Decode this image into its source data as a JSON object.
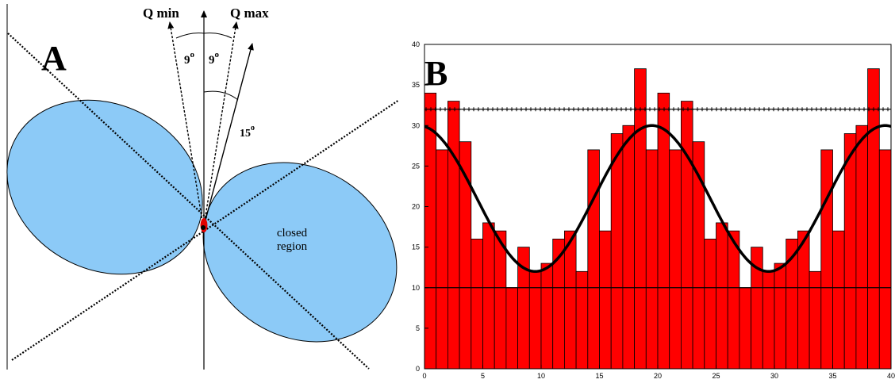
{
  "panel_a": {
    "label": "A",
    "q_min": "Q min",
    "q_max": "Q max",
    "angle_left": "9",
    "angle_right": "9",
    "angle_sup": "o",
    "angle_15": "15",
    "closed_line1": "closed",
    "closed_line2": "region",
    "colors": {
      "lobe": "#8ccaf7",
      "core": "#e00000"
    }
  },
  "chart_data": {
    "type": "bar",
    "label": "B",
    "xlim": [
      0,
      40
    ],
    "ylim": [
      0,
      40
    ],
    "xticks": [
      0,
      5,
      10,
      15,
      20,
      25,
      30,
      35,
      40
    ],
    "yticks": [
      0,
      5,
      10,
      15,
      20,
      25,
      30,
      35,
      40
    ],
    "values": [
      34,
      27,
      33,
      28,
      16,
      18,
      17,
      10,
      15,
      12,
      13,
      16,
      17,
      12,
      27,
      17,
      29,
      30,
      37,
      27,
      34,
      27,
      33,
      28,
      16,
      18,
      17,
      10,
      15,
      12,
      13,
      16,
      17,
      12,
      27,
      17,
      29,
      30,
      37,
      27
    ],
    "bar_width": 1,
    "reference_lines": [
      32,
      10
    ],
    "curve": {
      "mean": 21,
      "amplitude": 9,
      "period": 20,
      "peak_x": 19.5
    },
    "grid": false,
    "colors": {
      "bar": "#ff0000",
      "curve": "#000000"
    }
  }
}
